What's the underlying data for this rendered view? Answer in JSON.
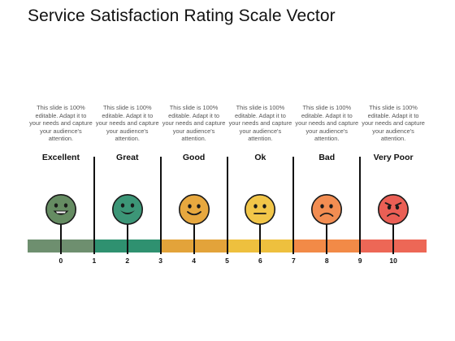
{
  "title": "Service Satisfaction Rating Scale Vector",
  "description": "This slide is 100% editable. Adapt it to your needs and capture your audience's attention.",
  "ratings": [
    {
      "label": "Excellent",
      "color": "#6e8f6f",
      "face_color": "#658c62",
      "mood": "very-happy"
    },
    {
      "label": "Great",
      "color": "#2f9170",
      "face_color": "#3c9677",
      "mood": "happy"
    },
    {
      "label": "Good",
      "color": "#e3a33a",
      "face_color": "#e7a83f",
      "mood": "smile"
    },
    {
      "label": "Ok",
      "color": "#eec03e",
      "face_color": "#f2c649",
      "mood": "neutral"
    },
    {
      "label": "Bad",
      "color": "#f28a47",
      "face_color": "#f28d52",
      "mood": "sad"
    },
    {
      "label": "Very Poor",
      "color": "#ed6756",
      "face_color": "#ea5f55",
      "mood": "angry"
    }
  ],
  "scale_ticks": [
    "0",
    "1",
    "2",
    "3",
    "4",
    "5",
    "6",
    "7",
    "8",
    "9",
    "10"
  ]
}
